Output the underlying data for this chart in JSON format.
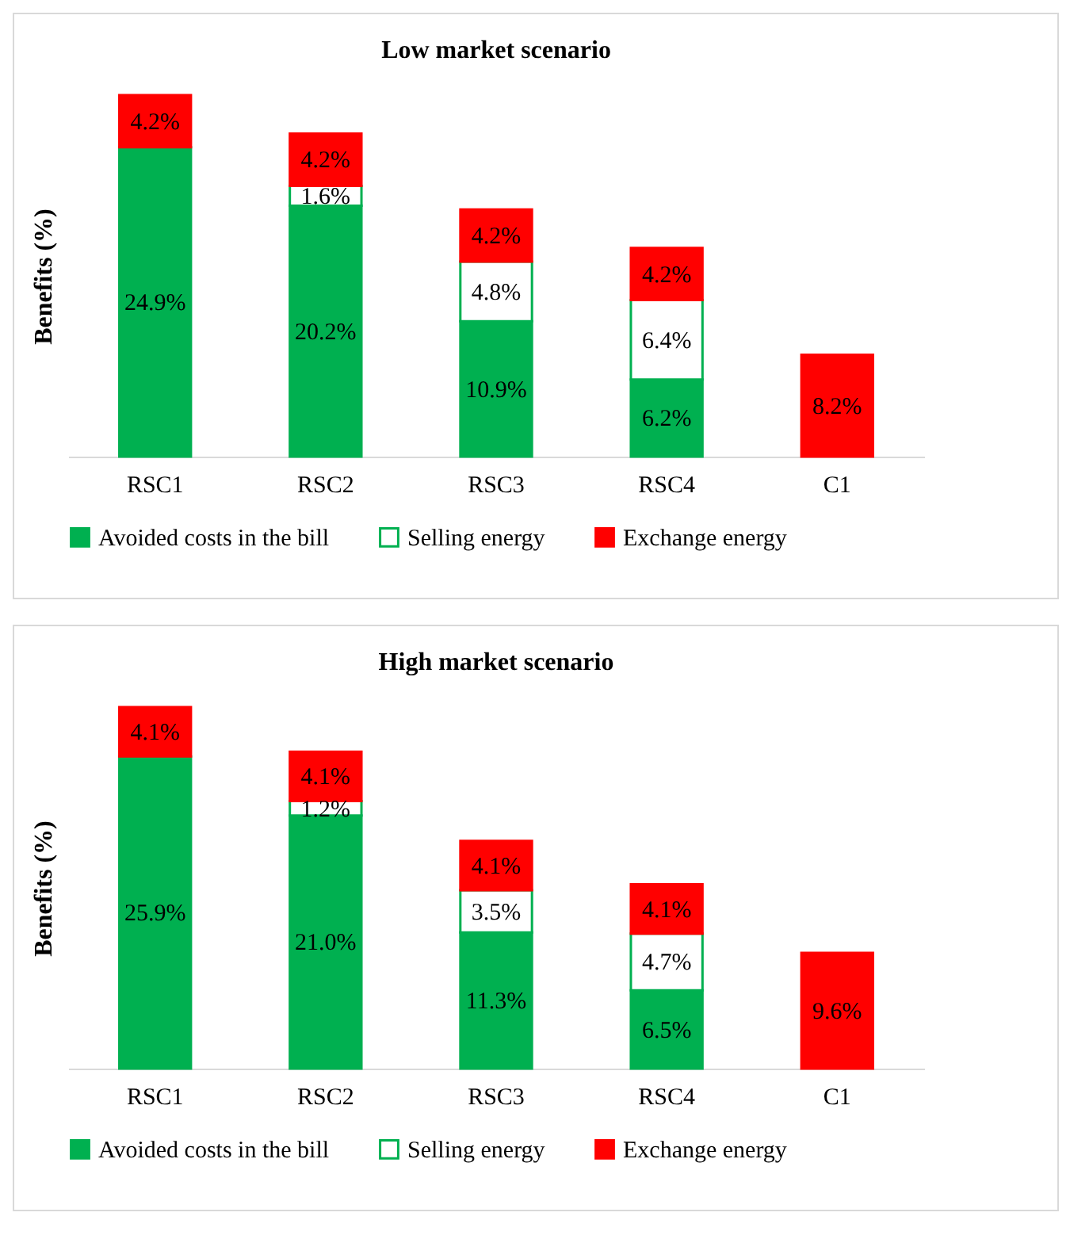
{
  "chart_data": [
    {
      "type": "bar",
      "title": "Low market scenario",
      "ylabel": "Benefits (%)",
      "categories": [
        "RSC1",
        "RSC2",
        "RSC3",
        "RSC4",
        "C1"
      ],
      "stacked": true,
      "legend": "bottom",
      "tick_labels": "x",
      "series": [
        {
          "name": "Avoided costs in the bill",
          "color": "#00b050",
          "values": [
            24.9,
            20.2,
            10.9,
            6.2,
            null
          ],
          "value_labels": [
            "24.9%",
            "20.2%",
            "10.9%",
            "6.2%",
            null
          ]
        },
        {
          "name": "Selling energy",
          "color": "#ffffff",
          "values": [
            null,
            1.6,
            4.8,
            6.4,
            null
          ],
          "value_labels": [
            null,
            "1.6%",
            "4.8%",
            "6.4%",
            null
          ]
        },
        {
          "name": "Exchange energy",
          "color": "#ff0000",
          "values": [
            4.2,
            4.2,
            4.2,
            4.2,
            8.2
          ],
          "value_labels": [
            "4.2%",
            "4.2%",
            "4.2%",
            "4.2%",
            "8.2%"
          ]
        }
      ]
    },
    {
      "type": "bar",
      "title": "High market scenario",
      "ylabel": "Benefits (%)",
      "categories": [
        "RSC1",
        "RSC2",
        "RSC3",
        "RSC4",
        "C1"
      ],
      "stacked": true,
      "legend": "bottom",
      "tick_labels": "x",
      "series": [
        {
          "name": "Avoided costs in the bill",
          "color": "#00b050",
          "values": [
            25.9,
            21.0,
            11.3,
            6.5,
            null
          ],
          "value_labels": [
            "25.9%",
            "21.0%",
            "11.3%",
            "6.5%",
            null
          ]
        },
        {
          "name": "Selling energy",
          "color": "#ffffff",
          "values": [
            null,
            1.2,
            3.5,
            4.7,
            null
          ],
          "value_labels": [
            null,
            "1.2%",
            "3.5%",
            "4.7%",
            null
          ]
        },
        {
          "name": "Exchange energy",
          "color": "#ff0000",
          "values": [
            4.1,
            4.1,
            4.1,
            4.1,
            9.6
          ],
          "value_labels": [
            "4.1%",
            "4.1%",
            "4.1%",
            "4.1%",
            "9.6%"
          ]
        }
      ]
    }
  ]
}
